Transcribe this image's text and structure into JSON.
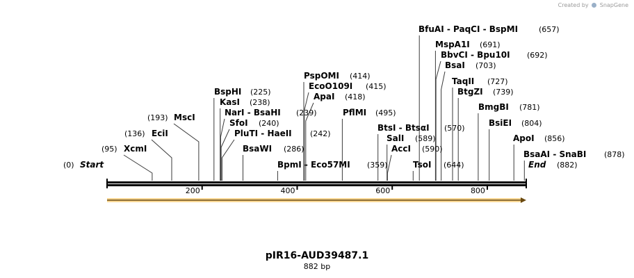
{
  "credit": {
    "prefix": "Created by",
    "brand": "SnapGene"
  },
  "title": "pIR16-AUD39487.1",
  "subtitle": "882 bp",
  "sequence": {
    "length": 882,
    "start_label": "Start",
    "end_label": "End",
    "start_pos": "(0)",
    "end_pos": "(882)"
  },
  "ticks": [
    200,
    400,
    600,
    800
  ],
  "sites": [
    {
      "label": "XcmI",
      "pos": "(95)"
    },
    {
      "label": "EciI",
      "pos": "(136)"
    },
    {
      "label": "MscI",
      "pos": "(193)"
    },
    {
      "label": "BspHI",
      "pos": "(225)"
    },
    {
      "label": "KasI",
      "pos": "(238)"
    },
    {
      "label": "NarI - BsaHI",
      "pos": "(239)"
    },
    {
      "label": "SfoI",
      "pos": "(240)"
    },
    {
      "label": "PluTI - HaeII",
      "pos": "(242)"
    },
    {
      "label": "BsaWI",
      "pos": "(286)"
    },
    {
      "label": "BpmI - Eco57MI",
      "pos": "(359)"
    },
    {
      "label": "PspOMI",
      "pos": "(414)"
    },
    {
      "label": "EcoO109I",
      "pos": "(415)"
    },
    {
      "label": "ApaI",
      "pos": "(418)"
    },
    {
      "label": "PflMI",
      "pos": "(495)"
    },
    {
      "label": "BtsI - BtsαI",
      "pos": "(570)"
    },
    {
      "label": "SalI",
      "pos": "(589)"
    },
    {
      "label": "AccI",
      "pos": "(590)"
    },
    {
      "label": "TsoI",
      "pos": "(644)"
    },
    {
      "label": "BfuAI - PaqCI - BspMI",
      "pos": "(657)"
    },
    {
      "label": "MspA1I",
      "pos": "(691)"
    },
    {
      "label": "BbvCI - Bpu10I",
      "pos": "(692)"
    },
    {
      "label": "BsaI",
      "pos": "(703)"
    },
    {
      "label": "TaqII",
      "pos": "(727)"
    },
    {
      "label": "BtgZI",
      "pos": "(739)"
    },
    {
      "label": "BmgBI",
      "pos": "(781)"
    },
    {
      "label": "BsiEI",
      "pos": "(804)"
    },
    {
      "label": "ApoI",
      "pos": "(856)"
    },
    {
      "label": "BsaAI - SnaBI",
      "pos": "(878)"
    }
  ],
  "colors": {
    "feature_arrow": "#f5b942",
    "backbone": "#000000"
  }
}
